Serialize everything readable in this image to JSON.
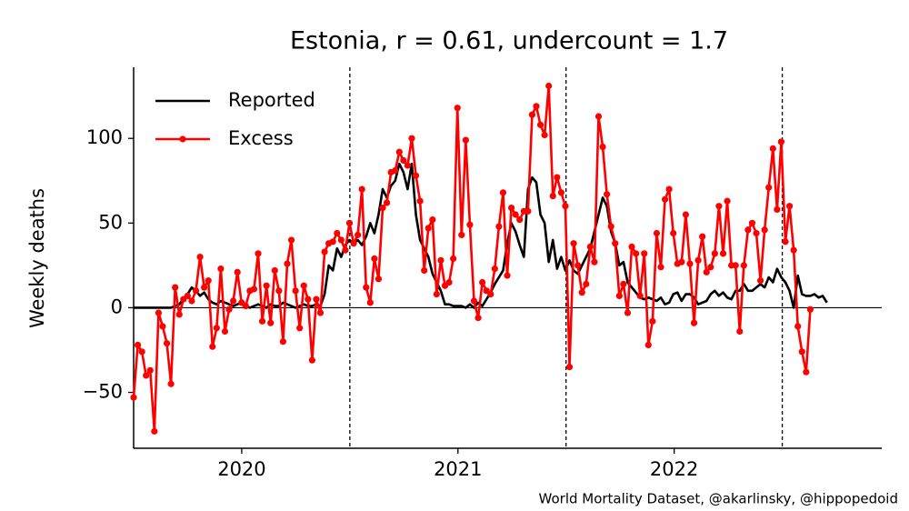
{
  "chart_data": {
    "type": "line",
    "title": "Estonia, r = 0.61, undercount = 1.7",
    "ylabel": "Weekly deaths",
    "source": "World Mortality Dataset, @akarlinsky, @hippopedoid",
    "legend": "upper left",
    "xlim": [
      2020,
      2023.46
    ],
    "xticks": [
      {
        "value": 2020.5,
        "label": "2020"
      },
      {
        "value": 2021.5,
        "label": "2021"
      },
      {
        "value": 2022.5,
        "label": "2022"
      }
    ],
    "ylim": [
      -83,
      142
    ],
    "yticks": [
      {
        "value": -50,
        "label": "−50"
      },
      0,
      50,
      100
    ],
    "hline": 0,
    "vlines": [
      2021,
      2022,
      2023
    ],
    "x": [
      2020,
      2020.0192,
      2020.0384,
      2020.0576,
      2020.0768,
      2020.096,
      2020.1152,
      2020.1344,
      2020.1536,
      2020.1728,
      2020.192,
      2020.2112,
      2020.2304,
      2020.2496,
      2020.2688,
      2020.288,
      2020.3072,
      2020.3264,
      2020.3456,
      2020.3648,
      2020.384,
      2020.4032,
      2020.4224,
      2020.4416,
      2020.4608,
      2020.48,
      2020.4992,
      2020.5184,
      2020.5376,
      2020.5568,
      2020.576,
      2020.5952,
      2020.6144,
      2020.6336,
      2020.6528,
      2020.672,
      2020.6912,
      2020.7104,
      2020.7296,
      2020.7488,
      2020.768,
      2020.7872,
      2020.8064,
      2020.8256,
      2020.8448,
      2020.864,
      2020.8832,
      2020.9024,
      2020.9216,
      2020.9408,
      2020.96,
      2020.9792,
      2020.9984,
      2021.0176,
      2021.0368,
      2021.056,
      2021.0752,
      2021.0944,
      2021.1136,
      2021.1328,
      2021.152,
      2021.1712,
      2021.1904,
      2021.2096,
      2021.2288,
      2021.248,
      2021.2672,
      2021.2864,
      2021.3056,
      2021.3248,
      2021.344,
      2021.3632,
      2021.3824,
      2021.4016,
      2021.4208,
      2021.44,
      2021.4592,
      2021.4784,
      2021.4976,
      2021.5168,
      2021.536,
      2021.5552,
      2021.5744,
      2021.5936,
      2021.6128,
      2021.632,
      2021.6512,
      2021.6704,
      2021.6896,
      2021.7088,
      2021.728,
      2021.7472,
      2021.7664,
      2021.7856,
      2021.8048,
      2021.824,
      2021.8432,
      2021.8624,
      2021.8816,
      2021.9008,
      2021.92,
      2021.9392,
      2021.9584,
      2021.9776,
      2021.9968,
      2022.016,
      2022.0352,
      2022.0544,
      2022.0736,
      2022.0928,
      2022.112,
      2022.1312,
      2022.1504,
      2022.1696,
      2022.1888,
      2022.208,
      2022.2272,
      2022.2464,
      2022.2656,
      2022.2848,
      2022.304,
      2022.3232,
      2022.3424,
      2022.3616,
      2022.3808,
      2022.4,
      2022.4192,
      2022.4384,
      2022.4576,
      2022.4768,
      2022.496,
      2022.5152,
      2022.5344,
      2022.5536,
      2022.5728,
      2022.592,
      2022.6112,
      2022.6304,
      2022.6496,
      2022.6688,
      2022.688,
      2022.7072,
      2022.7264,
      2022.7456,
      2022.7648,
      2022.784,
      2022.8032,
      2022.8224,
      2022.8416,
      2022.8608,
      2022.88,
      2022.8992,
      2022.9184,
      2022.9376,
      2022.9568,
      2022.976,
      2022.9952,
      2023.0144,
      2023.0336,
      2023.0528,
      2023.072,
      2023.0912,
      2023.1104,
      2023.1296,
      2023.1488,
      2023.168,
      2023.1872,
      2023.2064
    ],
    "series": [
      {
        "name": "Reported",
        "color": "#000000",
        "marker": false,
        "values": [
          0,
          0,
          0,
          0,
          0,
          0,
          0,
          0,
          0,
          0,
          1,
          2,
          5,
          8,
          12,
          10,
          7,
          9,
          5,
          3,
          2,
          4,
          3,
          2,
          1,
          2,
          3,
          1,
          0,
          1,
          2,
          1,
          0,
          2,
          1,
          1,
          3,
          2,
          1,
          0,
          1,
          2,
          1,
          1,
          2,
          1,
          8,
          25,
          22,
          35,
          30,
          37,
          40,
          38,
          40,
          37,
          42,
          50,
          44,
          55,
          70,
          65,
          72,
          75,
          85,
          80,
          70,
          85,
          55,
          40,
          35,
          30,
          20,
          15,
          10,
          2,
          2,
          1,
          1,
          1,
          0,
          2,
          0,
          3,
          1,
          5,
          9,
          14,
          18,
          22,
          38,
          50,
          45,
          37,
          30,
          70,
          77,
          74,
          55,
          50,
          27,
          40,
          23,
          30,
          22,
          28,
          22,
          20,
          25,
          30,
          35,
          45,
          55,
          65,
          60,
          45,
          38,
          25,
          27,
          15,
          12,
          9,
          6,
          5,
          6,
          5,
          4,
          6,
          2,
          3,
          8,
          9,
          4,
          8,
          8,
          6,
          2,
          3,
          4,
          8,
          10,
          7,
          9,
          6,
          5,
          10,
          10,
          14,
          10,
          10,
          12,
          14,
          12,
          18,
          15,
          23,
          18,
          15,
          10,
          0,
          19,
          8,
          7,
          7,
          8,
          6,
          7,
          3
        ]
      },
      {
        "name": "Excess",
        "color": "#ff0000",
        "marker": true,
        "values": [
          -53,
          -22,
          -26,
          -40,
          -37,
          -73,
          -3,
          -11,
          -21,
          -45,
          12,
          -4,
          5,
          7,
          4,
          10,
          30,
          12,
          16,
          -23,
          -12,
          23,
          -14,
          -1,
          4,
          21,
          3,
          1,
          10,
          11,
          32,
          -8,
          13,
          -9,
          22,
          10,
          -20,
          26,
          40,
          10,
          -12,
          13,
          5,
          -31,
          5,
          -3,
          33,
          38,
          39,
          44,
          40,
          34,
          50,
          38,
          43,
          70,
          12,
          3,
          29,
          17,
          59,
          62,
          80,
          81,
          92,
          87,
          84,
          100,
          78,
          63,
          22,
          47,
          52,
          8,
          28,
          13,
          15,
          29,
          118,
          43,
          99,
          49,
          4,
          -6,
          15,
          10,
          8,
          23,
          48,
          68,
          19,
          59,
          55,
          52,
          57,
          57,
          114,
          119,
          108,
          102,
          131,
          66,
          77,
          68,
          60,
          -35,
          38,
          25,
          9,
          14,
          36,
          27,
          113,
          95,
          67,
          48,
          38,
          7,
          14,
          -3,
          36,
          32,
          7,
          32,
          -22,
          -8,
          44,
          24,
          64,
          70,
          44,
          26,
          27,
          55,
          26,
          -9,
          28,
          42,
          21,
          24,
          32,
          60,
          32,
          63,
          25,
          25,
          -14,
          25,
          46,
          50,
          44,
          16,
          46,
          71,
          94,
          58,
          98,
          39,
          60,
          34,
          -11,
          -26,
          -38,
          -1,
          null,
          null,
          null,
          null
        ]
      }
    ]
  }
}
